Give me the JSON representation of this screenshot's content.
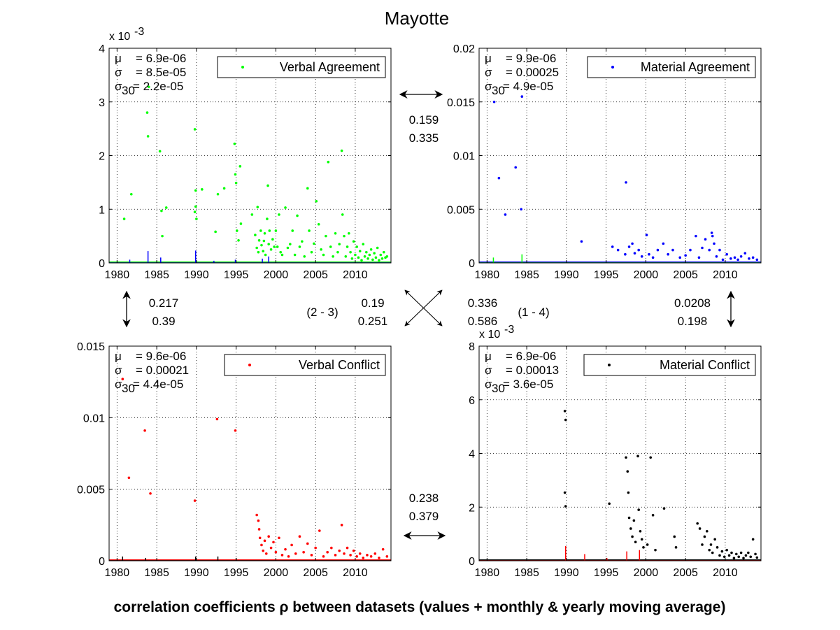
{
  "figure": {
    "title": "Mayotte",
    "caption": "correlation coefficients ρ between datasets (values + monthly & yearly moving average)"
  },
  "correlations": {
    "top": {
      "a": "0.159",
      "b": "0.335"
    },
    "left": {
      "a": "0.217",
      "b": "0.39"
    },
    "bottom": {
      "a": "0.238",
      "b": "0.379"
    },
    "right": {
      "a": "0.0208",
      "b": "0.198"
    },
    "diag_2_3": {
      "label": "(2 - 3)",
      "a": "0.19",
      "b": "0.251"
    },
    "diag_1_4": {
      "label": "(1 - 4)",
      "a": "0.336",
      "b": "0.586"
    }
  },
  "chart_data": [
    {
      "type": "scatter",
      "name": "Verbal Agreement",
      "color": "#00ff00",
      "overlay_color": "#0000ff",
      "legend": "Verbal Agreement",
      "legend_position": "top-right",
      "grid": true,
      "multiplier": "x 10",
      "multiplier_exp": "-3",
      "xlim": [
        1979,
        2014.5
      ],
      "ylim": [
        0,
        4
      ],
      "xticks": [
        1980,
        1985,
        1990,
        1995,
        2000,
        2005,
        2010
      ],
      "yticks": [
        0,
        1,
        2,
        3,
        4
      ],
      "ytick_labels": [
        "0",
        "1",
        "2",
        "3",
        "4"
      ],
      "stats": {
        "mu": "= 6.9e-06",
        "sigma": "= 8.5e-05",
        "sigma30": "= 2.2e-05"
      },
      "points": [
        [
          1980.9,
          0.82
        ],
        [
          1981.8,
          1.28
        ],
        [
          1983.8,
          2.8
        ],
        [
          1983.9,
          2.36
        ],
        [
          1984.0,
          3.28
        ],
        [
          1985.4,
          2.08
        ],
        [
          1985.6,
          0.97
        ],
        [
          1985.7,
          0.5
        ],
        [
          1986.2,
          1.03
        ],
        [
          1989.8,
          2.49
        ],
        [
          1989.9,
          1.35
        ],
        [
          1989.9,
          1.05
        ],
        [
          1989.8,
          0.95
        ],
        [
          1990.0,
          0.82
        ],
        [
          1990.7,
          1.37
        ],
        [
          1992.4,
          0.58
        ],
        [
          1992.7,
          1.28
        ],
        [
          1993.5,
          1.39
        ],
        [
          1994.8,
          2.22
        ],
        [
          1994.9,
          1.65
        ],
        [
          1995.0,
          1.49
        ],
        [
          1995.1,
          0.6
        ],
        [
          1995.3,
          0.42
        ],
        [
          1995.5,
          1.8
        ],
        [
          1995.6,
          0.73
        ],
        [
          1997.0,
          0.9
        ],
        [
          1997.4,
          0.52
        ],
        [
          1997.6,
          0.28
        ],
        [
          1997.7,
          1.04
        ],
        [
          1997.8,
          0.2
        ],
        [
          1997.9,
          0.42
        ],
        [
          1998.1,
          0.6
        ],
        [
          1998.2,
          0.33
        ],
        [
          1998.4,
          0.22
        ],
        [
          1998.5,
          0.41
        ],
        [
          1998.6,
          0.55
        ],
        [
          1998.7,
          0.15
        ],
        [
          1998.9,
          0.82
        ],
        [
          1999.0,
          1.44
        ],
        [
          1999.1,
          0.35
        ],
        [
          1999.2,
          0.6
        ],
        [
          1999.4,
          0.25
        ],
        [
          1999.6,
          0.44
        ],
        [
          1999.8,
          0.3
        ],
        [
          2000.0,
          0.6
        ],
        [
          2000.2,
          0.3
        ],
        [
          2000.4,
          0.9
        ],
        [
          2000.6,
          0.2
        ],
        [
          2000.8,
          0.15
        ],
        [
          2001.2,
          1.03
        ],
        [
          2001.5,
          0.28
        ],
        [
          2001.8,
          0.35
        ],
        [
          2002.1,
          0.6
        ],
        [
          2002.4,
          0.15
        ],
        [
          2002.7,
          0.88
        ],
        [
          2003.0,
          0.3
        ],
        [
          2003.3,
          0.4
        ],
        [
          2003.6,
          0.12
        ],
        [
          2004.0,
          1.39
        ],
        [
          2004.2,
          0.6
        ],
        [
          2004.5,
          0.2
        ],
        [
          2004.8,
          0.36
        ],
        [
          2005.1,
          1.15
        ],
        [
          2005.4,
          0.72
        ],
        [
          2005.7,
          0.25
        ],
        [
          2006.0,
          0.15
        ],
        [
          2006.3,
          0.5
        ],
        [
          2006.6,
          1.88
        ],
        [
          2006.9,
          0.3
        ],
        [
          2007.2,
          0.12
        ],
        [
          2007.5,
          0.55
        ],
        [
          2007.8,
          0.2
        ],
        [
          2008.0,
          0.35
        ],
        [
          2008.3,
          2.09
        ],
        [
          2008.4,
          0.9
        ],
        [
          2008.6,
          0.5
        ],
        [
          2008.8,
          0.12
        ],
        [
          2009.0,
          0.3
        ],
        [
          2009.2,
          0.55
        ],
        [
          2009.4,
          0.2
        ],
        [
          2009.6,
          0.08
        ],
        [
          2009.8,
          0.4
        ],
        [
          2010.0,
          0.15
        ],
        [
          2010.2,
          0.3
        ],
        [
          2010.4,
          0.1
        ],
        [
          2010.6,
          0.22
        ],
        [
          2010.8,
          0.05
        ],
        [
          2011.0,
          0.35
        ],
        [
          2011.2,
          0.12
        ],
        [
          2011.4,
          0.2
        ],
        [
          2011.6,
          0.08
        ],
        [
          2011.8,
          0.15
        ],
        [
          2012.0,
          0.25
        ],
        [
          2012.2,
          0.06
        ],
        [
          2012.4,
          0.18
        ],
        [
          2012.6,
          0.1
        ],
        [
          2012.8,
          0.28
        ],
        [
          2013.0,
          0.05
        ],
        [
          2013.2,
          0.15
        ],
        [
          2013.4,
          0.08
        ],
        [
          2013.6,
          0.2
        ],
        [
          2013.8,
          0.1
        ],
        [
          2014.0,
          0.12
        ]
      ],
      "overlay_lines": [
        [
          1981.6,
          0.06
        ],
        [
          1983.9,
          0.22
        ],
        [
          1985.5,
          0.1
        ],
        [
          1989.9,
          0.23
        ],
        [
          1992.2,
          0.04
        ],
        [
          1994.9,
          0.06
        ],
        [
          1998.3,
          0.08
        ],
        [
          1999.1,
          0.12
        ]
      ]
    },
    {
      "type": "scatter",
      "name": "Material Agreement",
      "color": "#0000ff",
      "overlay_color": "#00ff00",
      "legend": "Material Agreement",
      "legend_position": "top-right",
      "grid": true,
      "multiplier": "",
      "multiplier_exp": "",
      "xlim": [
        1979,
        2014.5
      ],
      "ylim": [
        0,
        0.02
      ],
      "xticks": [
        1980,
        1985,
        1990,
        1995,
        2000,
        2005,
        2010
      ],
      "yticks": [
        0,
        0.005,
        0.01,
        0.015,
        0.02
      ],
      "ytick_labels": [
        "0",
        "0.005",
        "0.01",
        "0.015",
        "0.02"
      ],
      "stats": {
        "mu": "= 9.9e-06",
        "sigma": "= 0.00025",
        "sigma30": "= 4.9e-05"
      },
      "points": [
        [
          1980.9,
          0.015
        ],
        [
          1981.5,
          0.0079
        ],
        [
          1982.3,
          0.0045
        ],
        [
          1983.6,
          0.0089
        ],
        [
          1984.3,
          0.005
        ],
        [
          1984.4,
          0.0155
        ],
        [
          1991.9,
          0.002
        ],
        [
          1995.8,
          0.0015
        ],
        [
          1996.5,
          0.0012
        ],
        [
          1997.4,
          0.0008
        ],
        [
          1997.5,
          0.0075
        ],
        [
          1997.9,
          0.0015
        ],
        [
          1998.3,
          0.0018
        ],
        [
          1998.6,
          0.0009
        ],
        [
          1999.1,
          0.0012
        ],
        [
          1999.5,
          0.0006
        ],
        [
          2000.1,
          0.0026
        ],
        [
          2000.4,
          0.0008
        ],
        [
          2000.9,
          0.0005
        ],
        [
          2001.5,
          0.0012
        ],
        [
          2002.2,
          0.0018
        ],
        [
          2002.8,
          0.0008
        ],
        [
          2003.4,
          0.0012
        ],
        [
          2004.3,
          0.0005
        ],
        [
          2005.0,
          0.0007
        ],
        [
          2005.6,
          0.0012
        ],
        [
          2006.3,
          0.0025
        ],
        [
          2006.7,
          0.0005
        ],
        [
          2007.1,
          0.0014
        ],
        [
          2007.5,
          0.0022
        ],
        [
          2008.0,
          0.0012
        ],
        [
          2008.3,
          0.0028
        ],
        [
          2008.4,
          0.0025
        ],
        [
          2008.6,
          0.0018
        ],
        [
          2008.9,
          0.0006
        ],
        [
          2009.3,
          0.0012
        ],
        [
          2009.7,
          0.0003
        ],
        [
          2010.2,
          0.0008
        ],
        [
          2010.7,
          0.0004
        ],
        [
          2011.2,
          0.0005
        ],
        [
          2011.6,
          0.0003
        ],
        [
          2012.0,
          0.0006
        ],
        [
          2012.5,
          0.0009
        ],
        [
          2013.0,
          0.0004
        ],
        [
          2013.5,
          0.0005
        ],
        [
          2014.0,
          0.0003
        ]
      ],
      "overlay_lines": [
        [
          1980.8,
          0.0005
        ],
        [
          1984.4,
          0.0008
        ]
      ]
    },
    {
      "type": "scatter",
      "name": "Verbal Conflict",
      "color": "#ff0000",
      "overlay_color": "#000000",
      "legend": "Verbal Conflict",
      "legend_position": "top-right",
      "grid": true,
      "multiplier": "",
      "multiplier_exp": "",
      "xlim": [
        1979,
        2014.5
      ],
      "ylim": [
        0,
        0.015
      ],
      "xticks": [
        1980,
        1985,
        1990,
        1995,
        2000,
        2005,
        2010
      ],
      "yticks": [
        0,
        0.005,
        0.01,
        0.015
      ],
      "ytick_labels": [
        "0",
        "0.005",
        "0.01",
        "0.015"
      ],
      "stats": {
        "mu": "= 9.6e-06",
        "sigma": "= 0.00021",
        "sigma30": "= 4.4e-05"
      },
      "points": [
        [
          1980.7,
          0.0127
        ],
        [
          1981.5,
          0.0058
        ],
        [
          1983.5,
          0.0091
        ],
        [
          1984.2,
          0.0047
        ],
        [
          1989.8,
          0.0042
        ],
        [
          1992.6,
          0.0099
        ],
        [
          1994.9,
          0.0091
        ],
        [
          1997.6,
          0.0032
        ],
        [
          1997.8,
          0.0028
        ],
        [
          1997.9,
          0.0022
        ],
        [
          1998.0,
          0.0016
        ],
        [
          1998.2,
          0.0011
        ],
        [
          1998.4,
          0.0007
        ],
        [
          1998.6,
          0.0014
        ],
        [
          1998.8,
          0.0005
        ],
        [
          1999.1,
          0.0017
        ],
        [
          1999.4,
          0.0009
        ],
        [
          1999.7,
          0.0013
        ],
        [
          2000.0,
          0.0006
        ],
        [
          2000.4,
          0.0016
        ],
        [
          2000.8,
          0.0004
        ],
        [
          2001.2,
          0.0008
        ],
        [
          2001.6,
          0.0003
        ],
        [
          2002.0,
          0.0011
        ],
        [
          2002.5,
          0.0005
        ],
        [
          2003.0,
          0.0017
        ],
        [
          2003.5,
          0.0006
        ],
        [
          2004.0,
          0.0012
        ],
        [
          2004.5,
          0.0004
        ],
        [
          2005.0,
          0.0009
        ],
        [
          2005.5,
          0.0021
        ],
        [
          2006.0,
          0.0003
        ],
        [
          2006.5,
          0.0006
        ],
        [
          2007.0,
          0.0009
        ],
        [
          2007.5,
          0.0004
        ],
        [
          2008.0,
          0.0007
        ],
        [
          2008.3,
          0.0025
        ],
        [
          2008.6,
          0.0005
        ],
        [
          2009.0,
          0.0009
        ],
        [
          2009.4,
          0.0004
        ],
        [
          2009.8,
          0.0007
        ],
        [
          2010.2,
          0.0003
        ],
        [
          2010.6,
          0.0005
        ],
        [
          2011.0,
          0.0002
        ],
        [
          2011.5,
          0.0004
        ],
        [
          2012.0,
          0.0003
        ],
        [
          2012.5,
          0.0005
        ],
        [
          2013.0,
          0.0002
        ],
        [
          2013.5,
          0.0008
        ],
        [
          2014.0,
          0.0003
        ]
      ],
      "overlay_lines": [
        [
          1980.7,
          0.0003
        ],
        [
          1983.6,
          0.0002
        ],
        [
          1989.9,
          0.0003
        ],
        [
          1992.7,
          0.0003
        ],
        [
          1995.0,
          0.0002
        ]
      ]
    },
    {
      "type": "scatter",
      "name": "Material Conflict",
      "color": "#000000",
      "overlay_color": "#ff0000",
      "legend": "Material Conflict",
      "legend_position": "top-right",
      "grid": true,
      "multiplier": "x 10",
      "multiplier_exp": "-3",
      "xlim": [
        1979,
        2014.5
      ],
      "ylim": [
        0,
        8
      ],
      "xticks": [
        1980,
        1985,
        1990,
        1995,
        2000,
        2005,
        2010
      ],
      "yticks": [
        0,
        2,
        4,
        6,
        8
      ],
      "ytick_labels": [
        "0",
        "2",
        "4",
        "6",
        "8"
      ],
      "stats": {
        "mu": "= 6.9e-06",
        "sigma": "= 0.00013",
        "sigma30": "= 3.6e-05"
      },
      "points": [
        [
          1989.8,
          5.58
        ],
        [
          1989.9,
          5.25
        ],
        [
          1989.8,
          2.54
        ],
        [
          1989.9,
          2.03
        ],
        [
          1995.4,
          2.13
        ],
        [
          1997.5,
          3.85
        ],
        [
          1997.7,
          3.33
        ],
        [
          1997.8,
          2.54
        ],
        [
          1997.9,
          1.6
        ],
        [
          1998.1,
          1.2
        ],
        [
          1998.3,
          0.9
        ],
        [
          1998.5,
          1.5
        ],
        [
          1998.7,
          0.7
        ],
        [
          1999.0,
          3.9
        ],
        [
          1999.1,
          1.9
        ],
        [
          1999.3,
          1.1
        ],
        [
          1999.5,
          0.8
        ],
        [
          1999.7,
          0.5
        ],
        [
          2000.2,
          0.6
        ],
        [
          2000.6,
          3.85
        ],
        [
          2000.9,
          1.7
        ],
        [
          2001.2,
          0.4
        ],
        [
          2002.3,
          1.95
        ],
        [
          2003.6,
          0.9
        ],
        [
          2003.8,
          0.5
        ],
        [
          2006.5,
          1.39
        ],
        [
          2006.8,
          1.2
        ],
        [
          2007.1,
          0.6
        ],
        [
          2007.4,
          0.9
        ],
        [
          2007.7,
          1.1
        ],
        [
          2008.0,
          0.4
        ],
        [
          2008.2,
          0.6
        ],
        [
          2008.4,
          0.3
        ],
        [
          2008.7,
          0.8
        ],
        [
          2009.0,
          0.5
        ],
        [
          2009.3,
          0.2
        ],
        [
          2009.6,
          0.35
        ],
        [
          2009.9,
          0.15
        ],
        [
          2010.2,
          0.4
        ],
        [
          2010.5,
          0.2
        ],
        [
          2010.8,
          0.3
        ],
        [
          2011.1,
          0.1
        ],
        [
          2011.4,
          0.25
        ],
        [
          2011.7,
          0.15
        ],
        [
          2012.0,
          0.3
        ],
        [
          2012.3,
          0.1
        ],
        [
          2012.6,
          0.2
        ],
        [
          2012.9,
          0.3
        ],
        [
          2013.2,
          0.15
        ],
        [
          2013.5,
          0.8
        ],
        [
          2013.8,
          0.25
        ],
        [
          2014.0,
          0.12
        ]
      ],
      "overlay_lines": [
        [
          1989.9,
          0.55
        ],
        [
          1992.3,
          0.25
        ],
        [
          1995.1,
          0.1
        ],
        [
          1997.6,
          0.35
        ],
        [
          1999.2,
          0.4
        ]
      ]
    }
  ]
}
